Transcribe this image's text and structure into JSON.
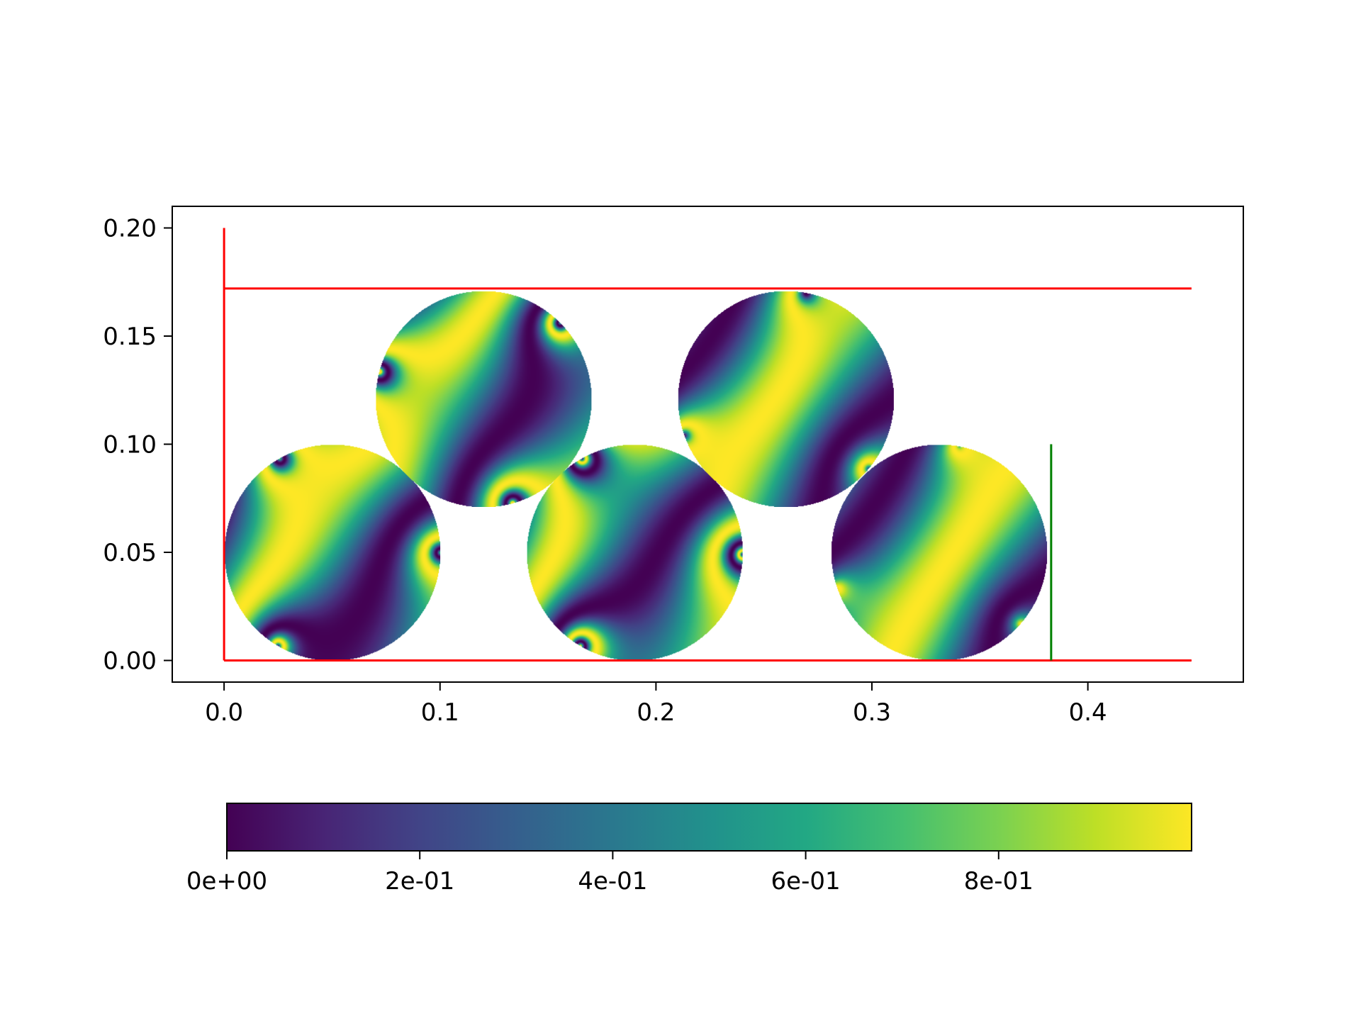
{
  "chart_data": {
    "type": "scatter",
    "title": "",
    "xlabel": "",
    "ylabel": "",
    "xlim": [
      -0.024,
      0.472
    ],
    "ylim": [
      -0.01,
      0.21
    ],
    "x_ticks": [
      {
        "value": 0.0,
        "label": "0.0"
      },
      {
        "value": 0.1,
        "label": "0.1"
      },
      {
        "value": 0.2,
        "label": "0.2"
      },
      {
        "value": 0.3,
        "label": "0.3"
      },
      {
        "value": 0.4,
        "label": "0.4"
      }
    ],
    "y_ticks": [
      {
        "value": 0.0,
        "label": "0.00"
      },
      {
        "value": 0.05,
        "label": "0.05"
      },
      {
        "value": 0.1,
        "label": "0.10"
      },
      {
        "value": 0.15,
        "label": "0.15"
      },
      {
        "value": 0.2,
        "label": "0.20"
      }
    ],
    "grid": false,
    "walls": [
      {
        "color": "#ff0000",
        "x": [
          0.0,
          0.0
        ],
        "y": [
          0.0,
          0.2
        ]
      },
      {
        "color": "#ff0000",
        "x": [
          0.0,
          0.448
        ],
        "y": [
          0.0,
          0.0
        ]
      },
      {
        "color": "#ff0000",
        "x": [
          0.0,
          0.448
        ],
        "y": [
          0.172,
          0.172
        ]
      },
      {
        "color": "#008000",
        "x": [
          0.383,
          0.383
        ],
        "y": [
          0.0,
          0.1
        ]
      }
    ],
    "particles": [
      {
        "cx": 0.05,
        "cy": 0.05,
        "r": 0.05
      },
      {
        "cx": 0.12,
        "cy": 0.121,
        "r": 0.05
      },
      {
        "cx": 0.19,
        "cy": 0.05,
        "r": 0.05
      },
      {
        "cx": 0.26,
        "cy": 0.121,
        "r": 0.05
      },
      {
        "cx": 0.331,
        "cy": 0.05,
        "r": 0.05
      }
    ],
    "colormap": "viridis",
    "colorbar": {
      "orientation": "horizontal",
      "range": [
        0,
        1
      ],
      "ticks": [
        {
          "value": 0.0,
          "label": "0e+00"
        },
        {
          "value": 0.2,
          "label": "2e-01"
        },
        {
          "value": 0.4,
          "label": "4e-01"
        },
        {
          "value": 0.6,
          "label": "6e-01"
        },
        {
          "value": 0.8,
          "label": "8e-01"
        }
      ]
    }
  }
}
